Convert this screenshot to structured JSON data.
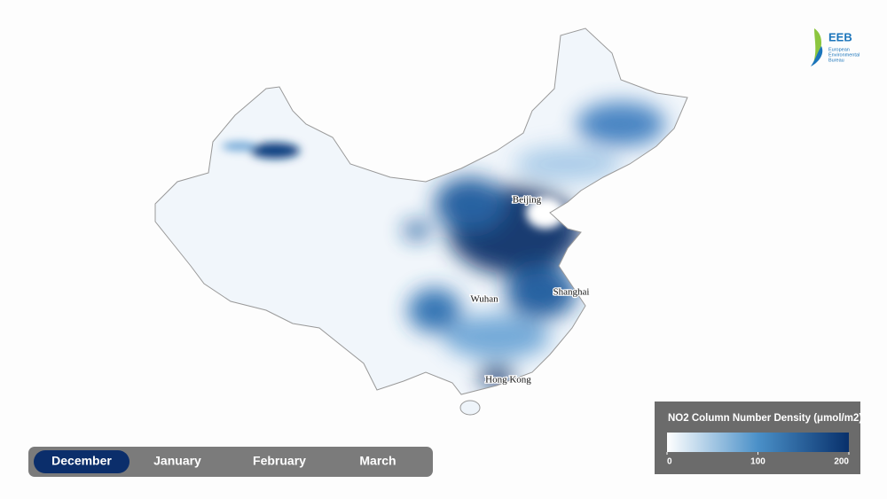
{
  "logo": {
    "name": "EEB",
    "subtitle": [
      "European",
      "Environmental",
      "Bureau"
    ]
  },
  "map": {
    "cities": [
      "Beijing",
      "Wuhan",
      "Shanghai",
      "Hong Kong"
    ]
  },
  "timeline": {
    "months": [
      "December",
      "January",
      "February",
      "March"
    ],
    "selected": 0
  },
  "legend": {
    "title": "NO2 Column Number Density (μmol/m2)",
    "range": [
      0,
      200
    ],
    "ticks": [
      0,
      100,
      200
    ],
    "colors": [
      "#ffffff",
      "#4a90c8",
      "#08306b"
    ]
  }
}
